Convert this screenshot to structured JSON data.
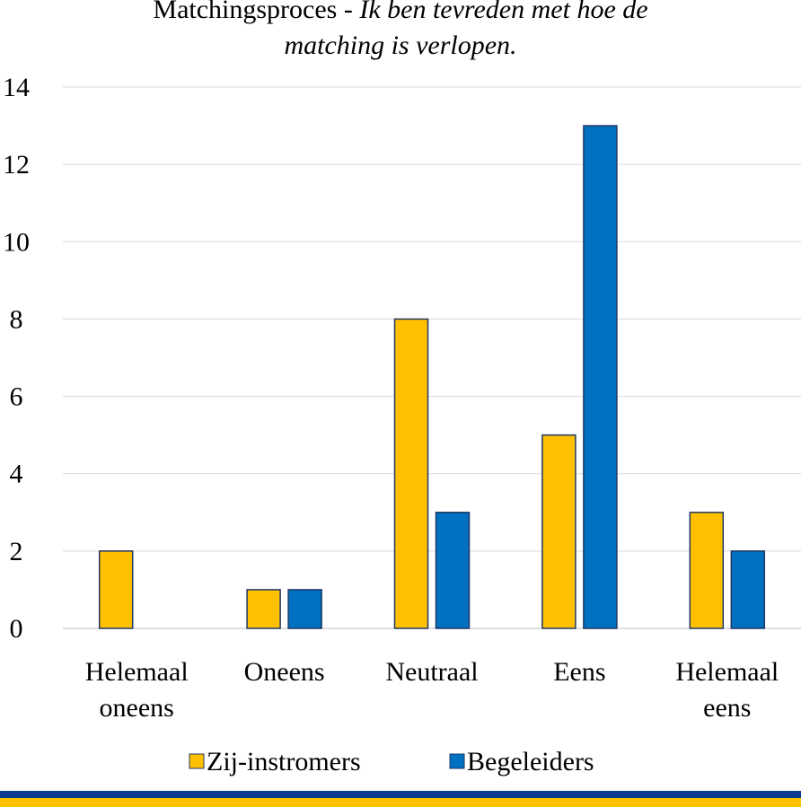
{
  "chart_data": {
    "type": "bar",
    "title_line1_regular": "Matchingsproces - ",
    "title_line1_italic": "Ik ben tevreden met hoe de",
    "title_line2_italic": "matching is verlopen.",
    "categories": [
      [
        "Helemaal",
        "oneens"
      ],
      [
        "Oneens"
      ],
      [
        "Neutraal"
      ],
      [
        "Eens"
      ],
      [
        "Helemaal",
        "eens"
      ]
    ],
    "series": [
      {
        "name": "Zij-instromers",
        "color": "#ffc000",
        "values": [
          2,
          1,
          8,
          5,
          3
        ]
      },
      {
        "name": "Begeleiders",
        "color": "#0070c0",
        "values": [
          0,
          1,
          3,
          13,
          2
        ]
      }
    ],
    "ylim": [
      0,
      14
    ],
    "yticks": [
      "0",
      "2",
      "4",
      "6",
      "8",
      "10",
      "12",
      "14"
    ],
    "grid": true,
    "legend_position": "bottom",
    "bar_outline_color": "#1f3864"
  }
}
